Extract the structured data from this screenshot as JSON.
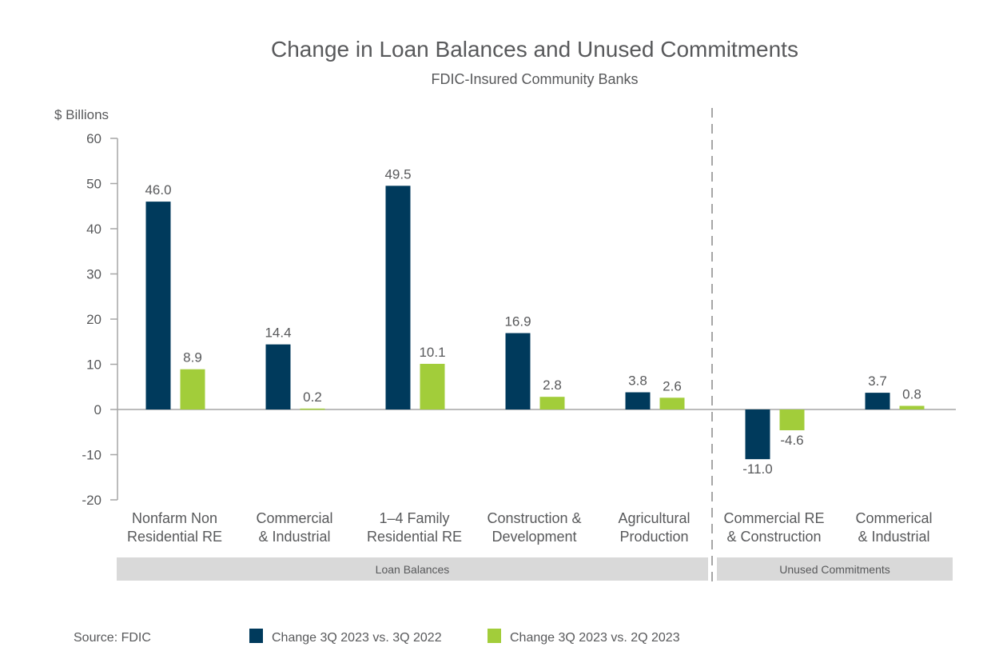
{
  "chart_data": {
    "type": "bar",
    "title": "Change in Loan Balances and Unused Commitments",
    "subtitle": "FDIC-Insured Community Banks",
    "ylabel": "$ Billions",
    "xlabel": "",
    "ylim": [
      -20,
      60
    ],
    "yticks": [
      60,
      50,
      40,
      30,
      20,
      10,
      0,
      -10,
      -20
    ],
    "grid": false,
    "categories": [
      [
        "Nonfarm Non",
        "Residential RE"
      ],
      [
        "Commercial",
        "& Industrial"
      ],
      [
        "1–4 Family",
        "Residential RE"
      ],
      [
        "Construction &",
        "Development"
      ],
      [
        "Agricultural",
        "Production"
      ],
      [
        "Commercial RE",
        "&  Construction"
      ],
      [
        "Commerical",
        "& Industrial"
      ]
    ],
    "groups": [
      {
        "label": "Loan Balances",
        "from": 0,
        "to": 4
      },
      {
        "label": "Unused Commitments",
        "from": 5,
        "to": 6
      }
    ],
    "series": [
      {
        "name": "Change 3Q 2023 vs. 3Q 2022",
        "color": "#003a5c",
        "values": [
          46.0,
          14.4,
          49.5,
          16.9,
          3.8,
          -11.0,
          3.7
        ],
        "labels": [
          "46.0",
          "14.4",
          "49.5",
          "16.9",
          "3.8",
          "-11.0",
          "3.7"
        ]
      },
      {
        "name": "Change 3Q 2023 vs. 2Q 2023",
        "color": "#a2cd3a",
        "values": [
          8.9,
          0.2,
          10.1,
          2.8,
          2.6,
          -4.6,
          0.8
        ],
        "labels": [
          "8.9",
          "0.2",
          "10.1",
          "2.8",
          "2.6",
          "-4.6",
          "0.8"
        ]
      }
    ],
    "legend_position": "bottom",
    "source": "Source: FDIC"
  },
  "colors": {
    "text": "#58595b",
    "axis": "#a6a6a6",
    "group_band": "#d9d9d9"
  }
}
